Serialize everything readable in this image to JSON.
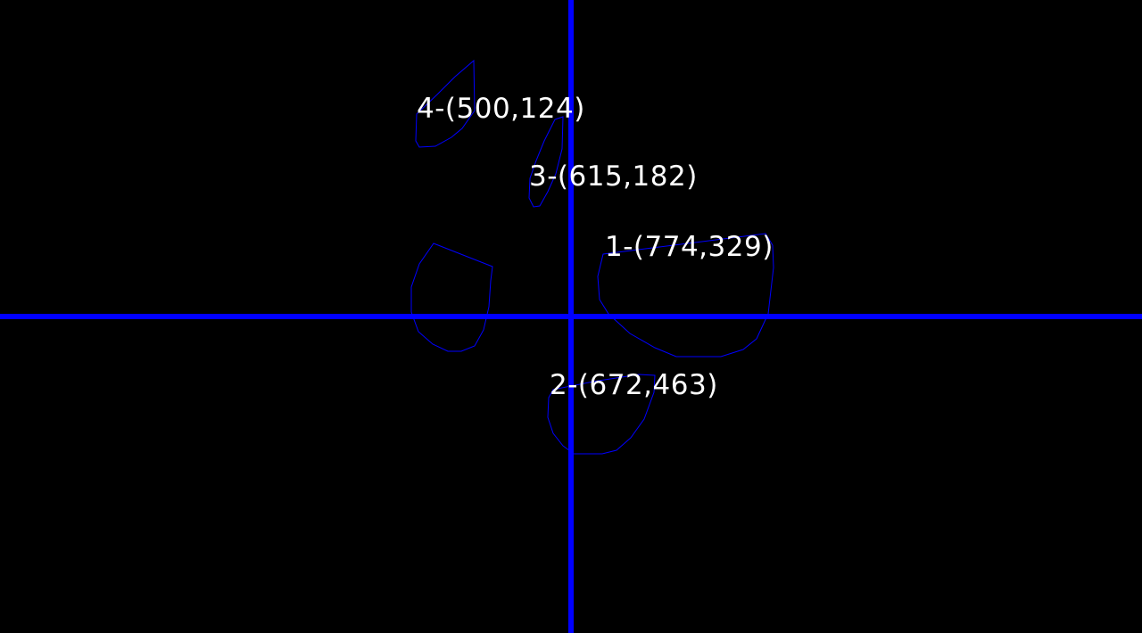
{
  "colors": {
    "background": "#000000",
    "axis": "#0000ff",
    "contour": "#0000ff",
    "label": "#ffffff"
  },
  "objects": [
    {
      "id": "1",
      "label": "1-(774,329)"
    },
    {
      "id": "2",
      "label": "2-(672,463)"
    },
    {
      "id": "3",
      "label": "3-(615,182)"
    },
    {
      "id": "4",
      "label": "4-(500,124)"
    },
    {
      "id": "5",
      "label": ""
    }
  ]
}
